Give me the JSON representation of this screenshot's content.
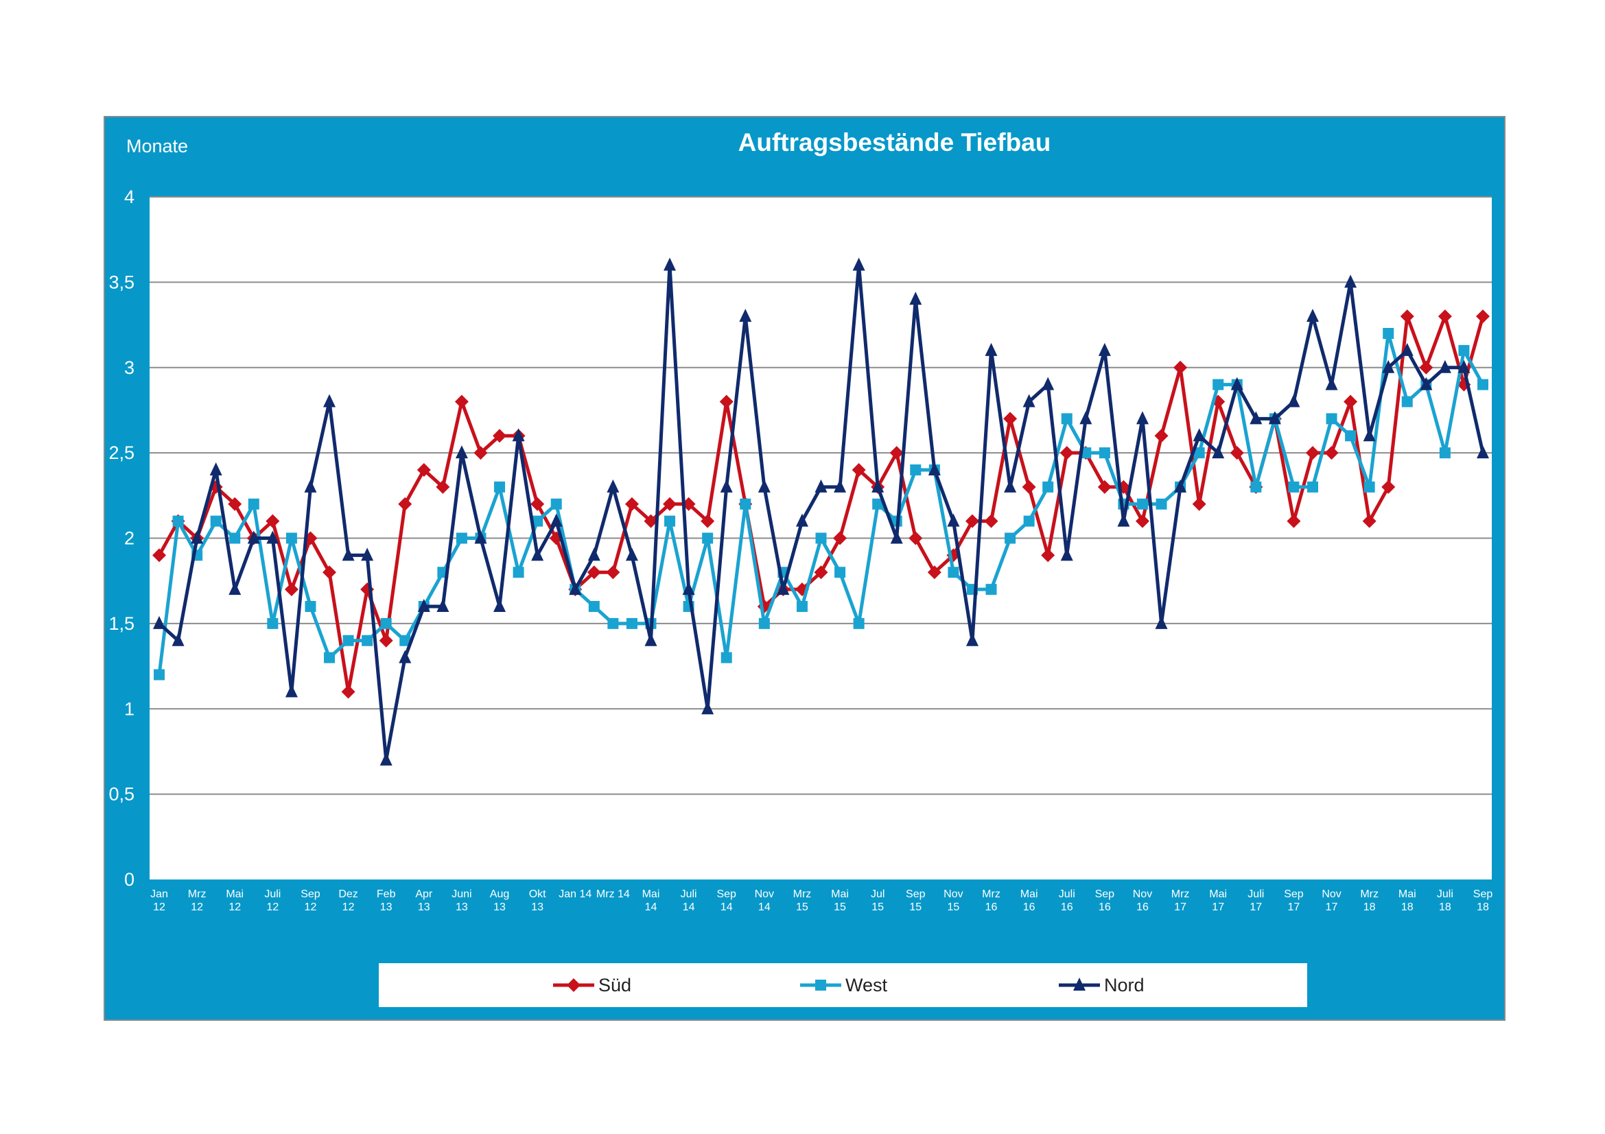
{
  "chart_data": {
    "type": "line",
    "title": "Auftragsbestände Tiefbau",
    "ylabel": "Monate",
    "xlabel": "",
    "ylim": [
      0,
      4
    ],
    "yticks": [
      0,
      0.5,
      1,
      1.5,
      2,
      2.5,
      3,
      3.5,
      4
    ],
    "ytick_labels": [
      "0",
      "0,5",
      "1",
      "1,5",
      "2",
      "2,5",
      "3",
      "3,5",
      "4"
    ],
    "grid": true,
    "legend_position": "bottom",
    "x_ticks": [
      {
        "index": 0,
        "label": "Jan\n12"
      },
      {
        "index": 2,
        "label": "Mrz\n12"
      },
      {
        "index": 4,
        "label": "Mai\n12"
      },
      {
        "index": 6,
        "label": "Juli\n12"
      },
      {
        "index": 8,
        "label": "Sep\n12"
      },
      {
        "index": 10,
        "label": "Dez\n12"
      },
      {
        "index": 12,
        "label": "Feb\n13"
      },
      {
        "index": 14,
        "label": "Apr\n13"
      },
      {
        "index": 16,
        "label": "Juni\n13"
      },
      {
        "index": 18,
        "label": "Aug\n13"
      },
      {
        "index": 20,
        "label": "Okt\n13"
      },
      {
        "index": 22,
        "label": "Jan 14"
      },
      {
        "index": 24,
        "label": "Mrz 14"
      },
      {
        "index": 26,
        "label": "Mai\n14"
      },
      {
        "index": 28,
        "label": "Juli\n14"
      },
      {
        "index": 30,
        "label": "Sep\n14"
      },
      {
        "index": 32,
        "label": "Nov\n14"
      },
      {
        "index": 34,
        "label": "Mrz\n15"
      },
      {
        "index": 36,
        "label": "Mai\n15"
      },
      {
        "index": 38,
        "label": "Jul\n15"
      },
      {
        "index": 40,
        "label": "Sep\n15"
      },
      {
        "index": 42,
        "label": "Nov\n15"
      },
      {
        "index": 44,
        "label": "Mrz\n16"
      },
      {
        "index": 46,
        "label": "Mai\n16"
      },
      {
        "index": 48,
        "label": "Juli\n16"
      },
      {
        "index": 50,
        "label": "Sep\n16"
      },
      {
        "index": 52,
        "label": "Nov\n16"
      },
      {
        "index": 54,
        "label": "Mrz\n17"
      },
      {
        "index": 56,
        "label": "Mai\n17"
      },
      {
        "index": 58,
        "label": "Juli\n17"
      },
      {
        "index": 60,
        "label": "Sep\n17"
      },
      {
        "index": 62,
        "label": "Nov\n17"
      },
      {
        "index": 64,
        "label": "Mrz\n18"
      },
      {
        "index": 66,
        "label": "Mai\n18"
      },
      {
        "index": 68,
        "label": "Juli\n18"
      },
      {
        "index": 70,
        "label": "Sep\n18"
      }
    ],
    "series": [
      {
        "name": "Süd",
        "color": "#c8111b",
        "marker": "diamond",
        "values": [
          1.9,
          2.1,
          2.0,
          2.3,
          2.2,
          2.0,
          2.1,
          1.7,
          2.0,
          1.8,
          1.1,
          1.7,
          1.4,
          2.2,
          2.4,
          2.3,
          2.8,
          2.5,
          2.6,
          2.6,
          2.2,
          2.0,
          1.7,
          1.8,
          1.8,
          2.2,
          2.1,
          2.2,
          2.2,
          2.1,
          2.8,
          2.2,
          1.6,
          1.7,
          1.7,
          1.8,
          2.0,
          2.4,
          2.3,
          2.5,
          2.0,
          1.8,
          1.9,
          2.1,
          2.1,
          2.7,
          2.3,
          1.9,
          2.5,
          2.5,
          2.3,
          2.3,
          2.1,
          2.6,
          3.0,
          2.2,
          2.8,
          2.5,
          2.3,
          2.7,
          2.1,
          2.5,
          2.5,
          2.8,
          2.1,
          2.3,
          3.3,
          3.0,
          3.3,
          2.9,
          3.3
        ]
      },
      {
        "name": "West",
        "color": "#1aa3d1",
        "marker": "square",
        "values": [
          1.2,
          2.1,
          1.9,
          2.1,
          2.0,
          2.2,
          1.5,
          2.0,
          1.6,
          1.3,
          1.4,
          1.4,
          1.5,
          1.4,
          1.6,
          1.8,
          2.0,
          2.0,
          2.3,
          1.8,
          2.1,
          2.2,
          1.7,
          1.6,
          1.5,
          1.5,
          1.5,
          2.1,
          1.6,
          2.0,
          1.3,
          2.2,
          1.5,
          1.8,
          1.6,
          2.0,
          1.8,
          1.5,
          2.2,
          2.1,
          2.4,
          2.4,
          1.8,
          1.7,
          1.7,
          2.0,
          2.1,
          2.3,
          2.7,
          2.5,
          2.5,
          2.2,
          2.2,
          2.2,
          2.3,
          2.5,
          2.9,
          2.9,
          2.3,
          2.7,
          2.3,
          2.3,
          2.7,
          2.6,
          2.3,
          3.2,
          2.8,
          2.9,
          2.5,
          3.1,
          2.9
        ]
      },
      {
        "name": "Nord",
        "color": "#102a6c",
        "marker": "triangle",
        "values": [
          1.5,
          1.4,
          2.0,
          2.4,
          1.7,
          2.0,
          2.0,
          1.1,
          2.3,
          2.8,
          1.9,
          1.9,
          0.7,
          1.3,
          1.6,
          1.6,
          2.5,
          2.0,
          1.6,
          2.6,
          1.9,
          2.1,
          1.7,
          1.9,
          2.3,
          1.9,
          1.4,
          3.6,
          1.7,
          1.0,
          2.3,
          3.3,
          2.3,
          1.7,
          2.1,
          2.3,
          2.3,
          3.6,
          2.3,
          2.0,
          3.4,
          2.4,
          2.1,
          1.4,
          3.1,
          2.3,
          2.8,
          2.9,
          1.9,
          2.7,
          3.1,
          2.1,
          2.7,
          1.5,
          2.3,
          2.6,
          2.5,
          2.9,
          2.7,
          2.7,
          2.8,
          3.3,
          2.9,
          3.5,
          2.6,
          3.0,
          3.1,
          2.9,
          3.0,
          3.0,
          2.5
        ]
      }
    ]
  }
}
